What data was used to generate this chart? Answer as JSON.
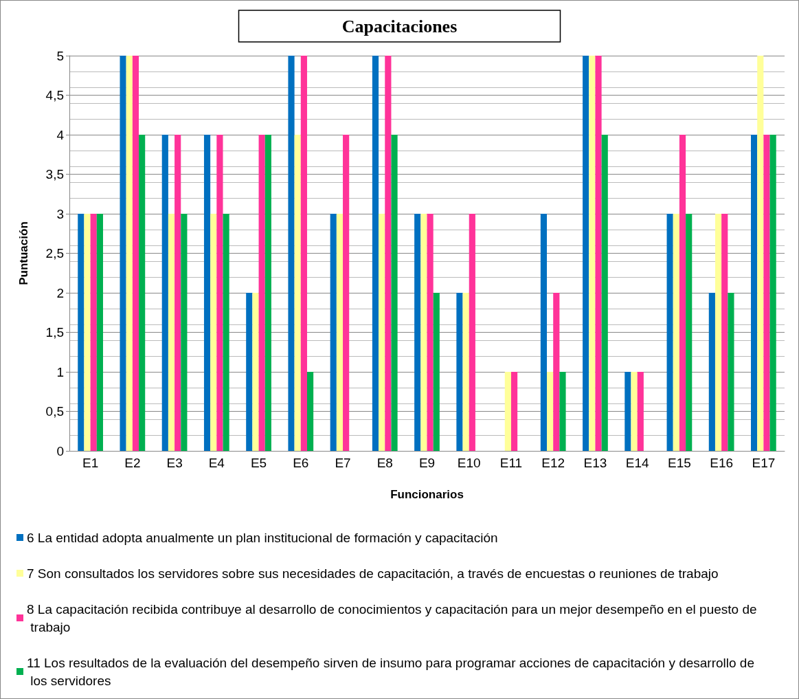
{
  "chart_data": {
    "type": "bar",
    "title": "Capacitaciones",
    "xlabel": "Funcionarios",
    "ylabel": "Puntuación",
    "categories": [
      "E1",
      "E2",
      "E3",
      "E4",
      "E5",
      "E6",
      "E7",
      "E8",
      "E9",
      "E10",
      "E11",
      "E12",
      "E13",
      "E14",
      "E15",
      "E16",
      "E17"
    ],
    "series": [
      {
        "name": "6 La entidad adopta anualmente un plan institucional de formación y capacitación",
        "color": "#0070c0",
        "values": [
          3,
          5,
          4,
          4,
          2,
          5,
          3,
          5,
          3,
          2,
          0,
          3,
          5,
          1,
          3,
          2,
          4
        ]
      },
      {
        "name": "7 Son consultados los servidores sobre sus necesidades de capacitación, a través de encuestas o reuniones de trabajo",
        "color": "#ffff99",
        "values": [
          3,
          5,
          3,
          3,
          2,
          4,
          3,
          3,
          3,
          2,
          1,
          1,
          5,
          1,
          3,
          3,
          5
        ]
      },
      {
        "name": "8 La capacitación recibida contribuye al desarrollo de conocimientos y capacitación para un mejor desempeño en el puesto de trabajo",
        "color": "#ff3399",
        "values": [
          3,
          5,
          4,
          4,
          4,
          5,
          4,
          5,
          3,
          3,
          1,
          2,
          5,
          1,
          4,
          3,
          4
        ]
      },
      {
        "name": "11 Los resultados de la evaluación del desempeño sirven de insumo para programar acciones de capacitación y desarrollo de los servidores",
        "color": "#00b050",
        "values": [
          3,
          4,
          3,
          3,
          4,
          1,
          0,
          4,
          2,
          0,
          0,
          1,
          4,
          0,
          3,
          2,
          4
        ]
      }
    ],
    "ylim": [
      0,
      5
    ],
    "yticks": [
      0,
      {
        "value": 0.5,
        "label": "0,5"
      },
      1,
      {
        "value": 1.5,
        "label": "1,5"
      },
      2,
      {
        "value": 2.5,
        "label": "2,5"
      },
      3,
      {
        "value": 3.5,
        "label": "3,5"
      },
      4,
      {
        "value": 4.5,
        "label": "4,5"
      },
      5
    ],
    "grid": true,
    "legend": "bottom"
  }
}
